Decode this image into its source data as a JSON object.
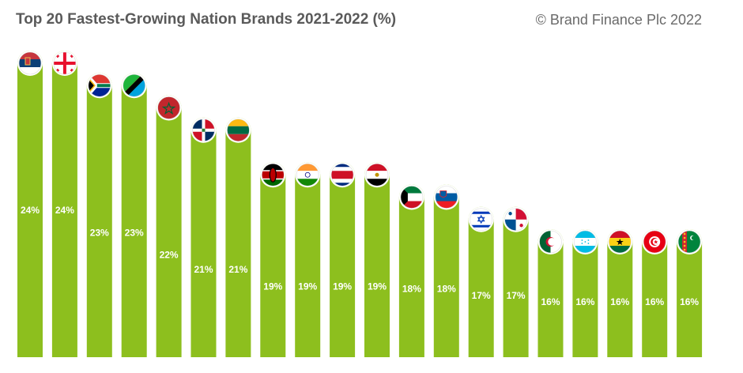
{
  "header": {
    "title": "Top 20 Fastest-Growing Nation Brands 2021-2022 (%)",
    "credit": "© Brand Finance Plc 2022"
  },
  "colors": {
    "bar": "#8dbf1e",
    "label": "#ffffff",
    "title": "#5a5a5a"
  },
  "chart_data": {
    "type": "bar",
    "title": "Top 20 Fastest-Growing Nation Brands 2021-2022 (%)",
    "xlabel": "",
    "ylabel": "",
    "ylim": [
      0,
      25
    ],
    "grid": false,
    "legend": "none",
    "categories": [
      "Serbia",
      "Georgia",
      "South Africa",
      "Tanzania",
      "Morocco",
      "Dominican Republic",
      "Lithuania",
      "Kenya",
      "India",
      "Costa Rica",
      "Egypt",
      "Kuwait",
      "Slovenia",
      "Israel",
      "Panama",
      "Algeria",
      "Honduras",
      "Ghana",
      "Tunisia",
      "Turkmenistan"
    ],
    "values": [
      24,
      24,
      23,
      23,
      22,
      21,
      21,
      19,
      19,
      19,
      19,
      18,
      18,
      17,
      17,
      16,
      16,
      16,
      16,
      16
    ],
    "labels": [
      "24%",
      "24%",
      "23%",
      "23%",
      "22%",
      "21%",
      "21%",
      "19%",
      "19%",
      "19%",
      "19%",
      "18%",
      "18%",
      "17%",
      "17%",
      "16%",
      "16%",
      "16%",
      "16%",
      "16%"
    ],
    "flag_icons": [
      "serbia-flag-icon",
      "georgia-flag-icon",
      "south-africa-flag-icon",
      "tanzania-flag-icon",
      "morocco-flag-icon",
      "dominican-republic-flag-icon",
      "lithuania-flag-icon",
      "kenya-flag-icon",
      "india-flag-icon",
      "costa-rica-flag-icon",
      "egypt-flag-icon",
      "kuwait-flag-icon",
      "slovenia-flag-icon",
      "israel-flag-icon",
      "panama-flag-icon",
      "algeria-flag-icon",
      "honduras-flag-icon",
      "ghana-flag-icon",
      "tunisia-flag-icon",
      "turkmenistan-flag-icon"
    ]
  }
}
